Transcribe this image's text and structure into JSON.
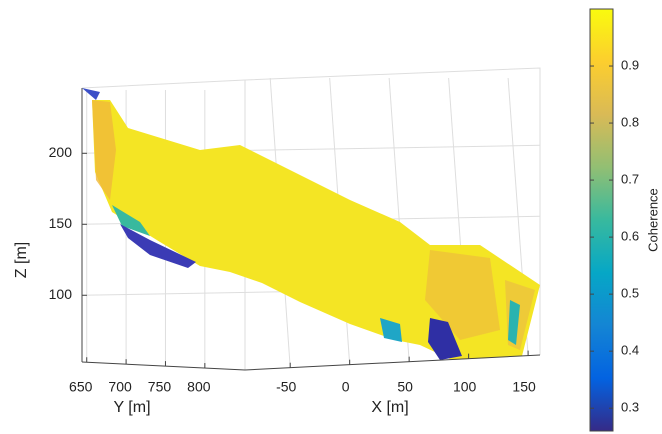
{
  "chart_data": {
    "type": "scatter3d",
    "xlabel": "X [m]",
    "ylabel": "Y [m]",
    "zlabel": "Z [m]",
    "xlim": [
      -88,
      160
    ],
    "xticks": [
      -50,
      0,
      50,
      100,
      150
    ],
    "ylim": [
      644,
      851
    ],
    "yticks": [
      650,
      700,
      750,
      800
    ],
    "zlim": [
      53,
      246
    ],
    "zticks": [
      100,
      150,
      200
    ],
    "grid": true,
    "colorbar": {
      "label": "Coherence",
      "clim": [
        0.26,
        1.0
      ],
      "ticks": [
        0.3,
        0.4,
        0.5,
        0.6,
        0.7,
        0.8,
        0.9
      ],
      "colormap": [
        "#352a87",
        "#0363e1",
        "#1485d4",
        "#06a7c6",
        "#38b99e",
        "#92bf73",
        "#d9ba56",
        "#fcce2e",
        "#f9fb0e"
      ]
    }
  }
}
